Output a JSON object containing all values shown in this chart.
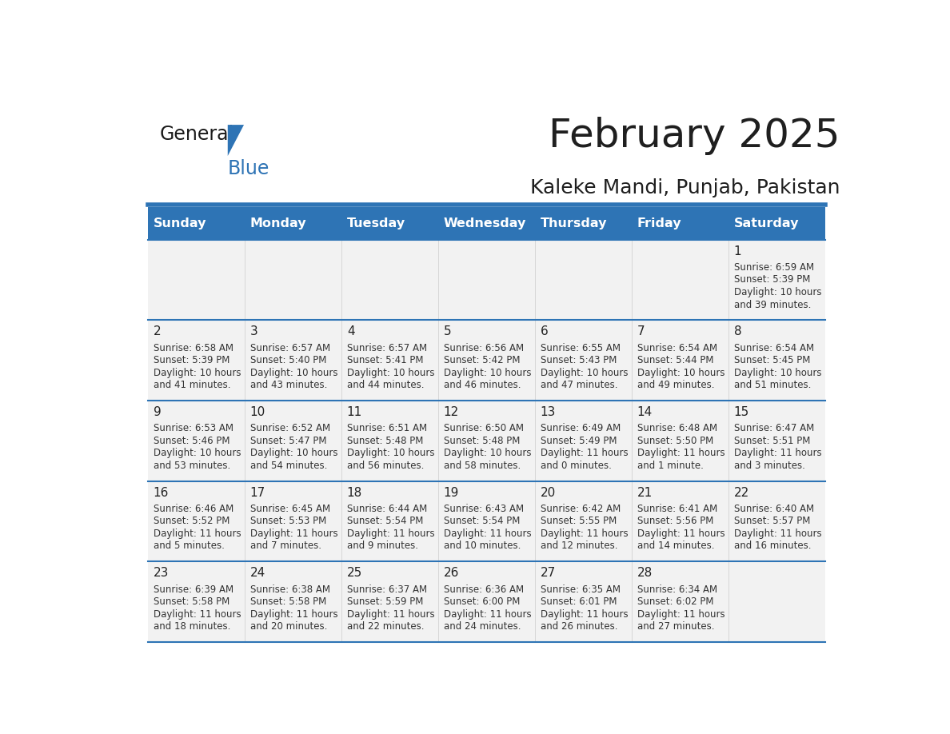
{
  "title": "February 2025",
  "subtitle": "Kaleke Mandi, Punjab, Pakistan",
  "header_bg": "#2E74B5",
  "header_text": "#FFFFFF",
  "cell_bg_light": "#F2F2F2",
  "cell_bg_white": "#FFFFFF",
  "border_color": "#2E74B5",
  "day_names": [
    "Sunday",
    "Monday",
    "Tuesday",
    "Wednesday",
    "Thursday",
    "Friday",
    "Saturday"
  ],
  "title_color": "#1F1F1F",
  "subtitle_color": "#1F1F1F",
  "days": [
    {
      "day": 1,
      "col": 6,
      "row": 0,
      "sunrise": "6:59 AM",
      "sunset": "5:39 PM",
      "daylight": "10 hours and 39 minutes."
    },
    {
      "day": 2,
      "col": 0,
      "row": 1,
      "sunrise": "6:58 AM",
      "sunset": "5:39 PM",
      "daylight": "10 hours and 41 minutes."
    },
    {
      "day": 3,
      "col": 1,
      "row": 1,
      "sunrise": "6:57 AM",
      "sunset": "5:40 PM",
      "daylight": "10 hours and 43 minutes."
    },
    {
      "day": 4,
      "col": 2,
      "row": 1,
      "sunrise": "6:57 AM",
      "sunset": "5:41 PM",
      "daylight": "10 hours and 44 minutes."
    },
    {
      "day": 5,
      "col": 3,
      "row": 1,
      "sunrise": "6:56 AM",
      "sunset": "5:42 PM",
      "daylight": "10 hours and 46 minutes."
    },
    {
      "day": 6,
      "col": 4,
      "row": 1,
      "sunrise": "6:55 AM",
      "sunset": "5:43 PM",
      "daylight": "10 hours and 47 minutes."
    },
    {
      "day": 7,
      "col": 5,
      "row": 1,
      "sunrise": "6:54 AM",
      "sunset": "5:44 PM",
      "daylight": "10 hours and 49 minutes."
    },
    {
      "day": 8,
      "col": 6,
      "row": 1,
      "sunrise": "6:54 AM",
      "sunset": "5:45 PM",
      "daylight": "10 hours and 51 minutes."
    },
    {
      "day": 9,
      "col": 0,
      "row": 2,
      "sunrise": "6:53 AM",
      "sunset": "5:46 PM",
      "daylight": "10 hours and 53 minutes."
    },
    {
      "day": 10,
      "col": 1,
      "row": 2,
      "sunrise": "6:52 AM",
      "sunset": "5:47 PM",
      "daylight": "10 hours and 54 minutes."
    },
    {
      "day": 11,
      "col": 2,
      "row": 2,
      "sunrise": "6:51 AM",
      "sunset": "5:48 PM",
      "daylight": "10 hours and 56 minutes."
    },
    {
      "day": 12,
      "col": 3,
      "row": 2,
      "sunrise": "6:50 AM",
      "sunset": "5:48 PM",
      "daylight": "10 hours and 58 minutes."
    },
    {
      "day": 13,
      "col": 4,
      "row": 2,
      "sunrise": "6:49 AM",
      "sunset": "5:49 PM",
      "daylight": "11 hours and 0 minutes."
    },
    {
      "day": 14,
      "col": 5,
      "row": 2,
      "sunrise": "6:48 AM",
      "sunset": "5:50 PM",
      "daylight": "11 hours and 1 minute."
    },
    {
      "day": 15,
      "col": 6,
      "row": 2,
      "sunrise": "6:47 AM",
      "sunset": "5:51 PM",
      "daylight": "11 hours and 3 minutes."
    },
    {
      "day": 16,
      "col": 0,
      "row": 3,
      "sunrise": "6:46 AM",
      "sunset": "5:52 PM",
      "daylight": "11 hours and 5 minutes."
    },
    {
      "day": 17,
      "col": 1,
      "row": 3,
      "sunrise": "6:45 AM",
      "sunset": "5:53 PM",
      "daylight": "11 hours and 7 minutes."
    },
    {
      "day": 18,
      "col": 2,
      "row": 3,
      "sunrise": "6:44 AM",
      "sunset": "5:54 PM",
      "daylight": "11 hours and 9 minutes."
    },
    {
      "day": 19,
      "col": 3,
      "row": 3,
      "sunrise": "6:43 AM",
      "sunset": "5:54 PM",
      "daylight": "11 hours and 10 minutes."
    },
    {
      "day": 20,
      "col": 4,
      "row": 3,
      "sunrise": "6:42 AM",
      "sunset": "5:55 PM",
      "daylight": "11 hours and 12 minutes."
    },
    {
      "day": 21,
      "col": 5,
      "row": 3,
      "sunrise": "6:41 AM",
      "sunset": "5:56 PM",
      "daylight": "11 hours and 14 minutes."
    },
    {
      "day": 22,
      "col": 6,
      "row": 3,
      "sunrise": "6:40 AM",
      "sunset": "5:57 PM",
      "daylight": "11 hours and 16 minutes."
    },
    {
      "day": 23,
      "col": 0,
      "row": 4,
      "sunrise": "6:39 AM",
      "sunset": "5:58 PM",
      "daylight": "11 hours and 18 minutes."
    },
    {
      "day": 24,
      "col": 1,
      "row": 4,
      "sunrise": "6:38 AM",
      "sunset": "5:58 PM",
      "daylight": "11 hours and 20 minutes."
    },
    {
      "day": 25,
      "col": 2,
      "row": 4,
      "sunrise": "6:37 AM",
      "sunset": "5:59 PM",
      "daylight": "11 hours and 22 minutes."
    },
    {
      "day": 26,
      "col": 3,
      "row": 4,
      "sunrise": "6:36 AM",
      "sunset": "6:00 PM",
      "daylight": "11 hours and 24 minutes."
    },
    {
      "day": 27,
      "col": 4,
      "row": 4,
      "sunrise": "6:35 AM",
      "sunset": "6:01 PM",
      "daylight": "11 hours and 26 minutes."
    },
    {
      "day": 28,
      "col": 5,
      "row": 4,
      "sunrise": "6:34 AM",
      "sunset": "6:02 PM",
      "daylight": "11 hours and 27 minutes."
    }
  ]
}
